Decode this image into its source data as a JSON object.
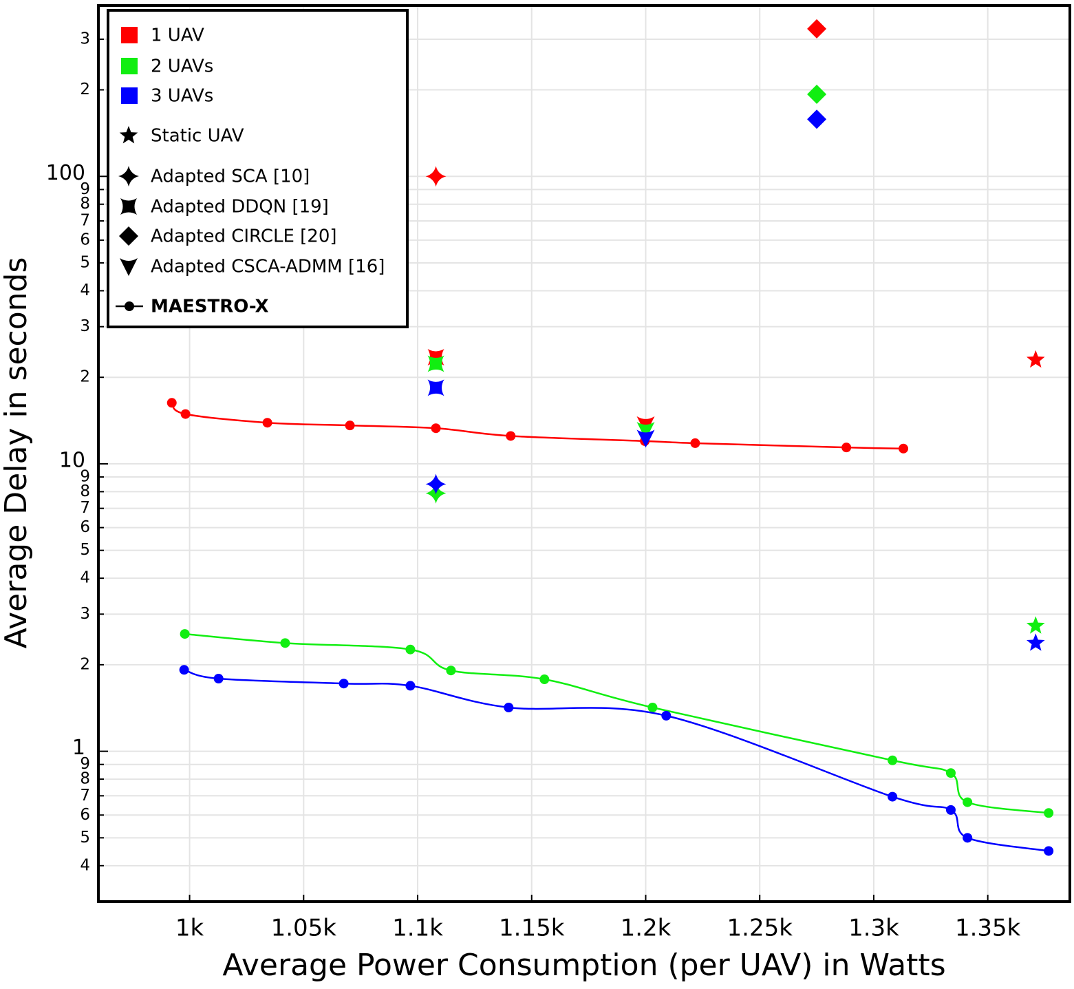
{
  "chart_data": {
    "type": "scatter-line",
    "x_label": "Average Power Consumption (per UAV) in Watts",
    "y_label": "Average Delay in seconds",
    "log_y": true,
    "grid": true,
    "legend_position": "upper-left",
    "xlim": [
      960,
      1386
    ],
    "ylim": [
      0.3,
      393
    ],
    "xticks": [
      {
        "value": 1000,
        "label": "1k"
      },
      {
        "value": 1050,
        "label": "1.05k"
      },
      {
        "value": 1100,
        "label": "1.1k"
      },
      {
        "value": 1150,
        "label": "1.15k"
      },
      {
        "value": 1200,
        "label": "1.2k"
      },
      {
        "value": 1250,
        "label": "1.25k"
      },
      {
        "value": 1300,
        "label": "1.3k"
      },
      {
        "value": 1350,
        "label": "1.35k"
      }
    ],
    "yticks": [
      {
        "value": 0.4,
        "label": "4"
      },
      {
        "value": 0.5,
        "label": "5"
      },
      {
        "value": 0.6,
        "label": "6"
      },
      {
        "value": 0.7,
        "label": "7"
      },
      {
        "value": 0.8,
        "label": "8"
      },
      {
        "value": 0.9,
        "label": "9"
      },
      1,
      2,
      3,
      4,
      5,
      6,
      7,
      8,
      9,
      10,
      {
        "value": 20,
        "label": "2"
      },
      {
        "value": 30,
        "label": "3"
      },
      {
        "value": 40,
        "label": "4"
      },
      {
        "value": 50,
        "label": "5"
      },
      {
        "value": 60,
        "label": "6"
      },
      {
        "value": 70,
        "label": "7"
      },
      {
        "value": 80,
        "label": "8"
      },
      {
        "value": 90,
        "label": "9"
      },
      100,
      {
        "value": 200,
        "label": "2"
      },
      {
        "value": 300,
        "label": "3"
      }
    ],
    "major_yticks": [
      1,
      10,
      100
    ],
    "uav_groups": [
      {
        "name": "1 UAV",
        "color": "#ff0000"
      },
      {
        "name": "2 UAVs",
        "color": "#11ee11"
      },
      {
        "name": "3 UAVs",
        "color": "#0000ff"
      }
    ],
    "series": [
      {
        "name": "Static UAV",
        "marker": "star",
        "groups": [
          {
            "x": [
              1371
            ],
            "values": [
              23
            ]
          },
          {
            "x": [
              1371
            ],
            "values": [
              2.73
            ]
          },
          {
            "x": [
              1371
            ],
            "values": [
              2.38
            ]
          }
        ]
      },
      {
        "name": "Adapted SCA [10]",
        "marker": "sparkle",
        "groups": [
          {
            "x": [
              1108
            ],
            "values": [
              100
            ]
          },
          {
            "x": [
              1108
            ],
            "values": [
              7.9
            ]
          },
          {
            "x": [
              1108
            ],
            "values": [
              8.5
            ]
          }
        ]
      },
      {
        "name": "Adapted DDQN [19]",
        "marker": "bowtie",
        "groups": [
          {
            "x": [
              1108
            ],
            "values": [
              23.5
            ]
          },
          {
            "x": [
              1108
            ],
            "values": [
              22.3
            ]
          },
          {
            "x": [
              1108
            ],
            "values": [
              18.4
            ]
          }
        ]
      },
      {
        "name": "Adapted CIRCLE [20]",
        "marker": "diamond",
        "groups": [
          {
            "x": [
              1275
            ],
            "values": [
              326
            ]
          },
          {
            "x": [
              1275
            ],
            "values": [
              193
            ]
          },
          {
            "x": [
              1275
            ],
            "values": [
              158
            ]
          }
        ]
      },
      {
        "name": "Adapted CSCA-ADMM [16]",
        "marker": "tri-down",
        "groups": [
          {
            "x": [
              1200
            ],
            "values": [
              13.7
            ]
          },
          {
            "x": [
              1200
            ],
            "values": [
              13.1
            ]
          },
          {
            "x": [
              1200
            ],
            "values": [
              12.3
            ]
          }
        ]
      },
      {
        "name": "MAESTRO-X",
        "marker": "line-circle",
        "groups": [
          {
            "x": [
              992.2,
              998.2,
              1034.1,
              1070.3,
              1108,
              1140.8,
              1199.6,
              1221.7,
              1288,
              1313
            ],
            "values": [
              16.3,
              14.9,
              13.9,
              13.6,
              13.3,
              12.5,
              12.0,
              11.8,
              11.4,
              11.3
            ]
          },
          {
            "x": [
              997.9,
              1041.9,
              1096.8,
              1114.6,
              1155.6,
              1203,
              1308.2,
              1333.8,
              1341.1,
              1376.7
            ],
            "values": [
              2.56,
              2.38,
              2.26,
              1.91,
              1.78,
              1.42,
              0.93,
              0.84,
              0.665,
              0.61
            ]
          },
          {
            "x": [
              997.6,
              1012.7,
              1067.6,
              1096.8,
              1139.9,
              1209,
              1308.2,
              1333.8,
              1341.1,
              1376.7
            ],
            "values": [
              1.92,
              1.79,
              1.72,
              1.69,
              1.42,
              1.33,
              0.695,
              0.625,
              0.5,
              0.45
            ]
          }
        ]
      }
    ]
  }
}
